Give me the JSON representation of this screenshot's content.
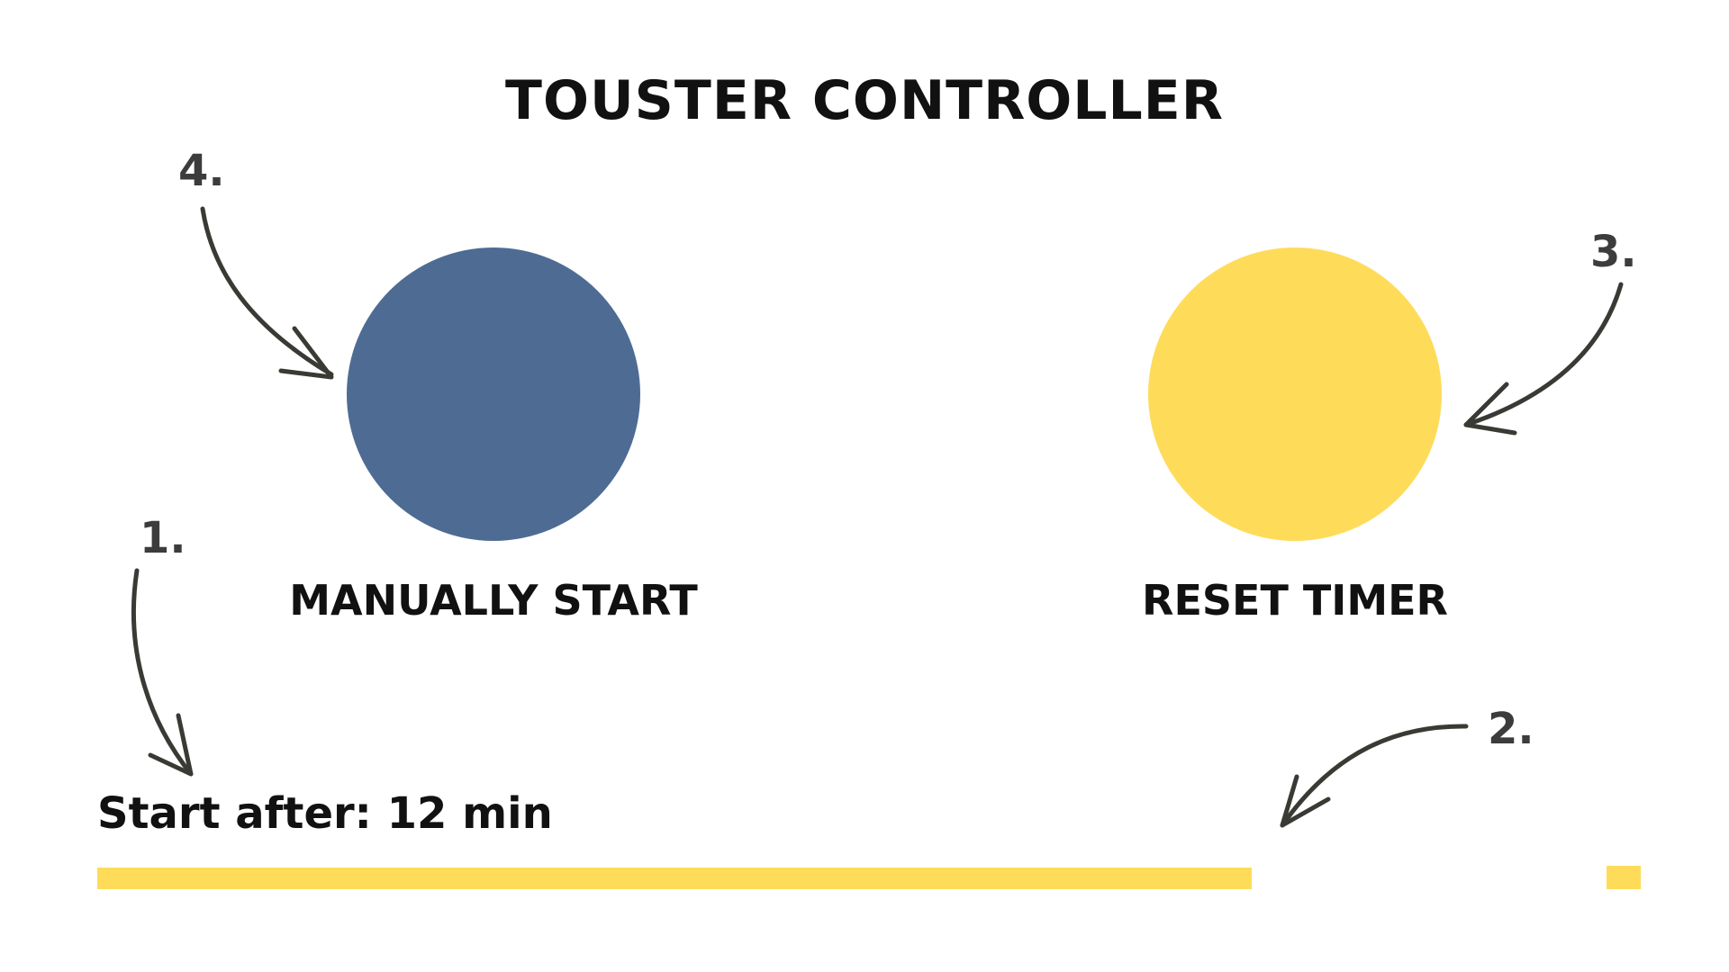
{
  "title": "TOUSTER CONTROLLER",
  "buttons": {
    "manual_start": {
      "label": "MANUALLY START",
      "color": "#4e6b94"
    },
    "reset_timer": {
      "label": "RESET TIMER",
      "color": "#fedc5a"
    }
  },
  "steps": {
    "step_1": "1.",
    "step_2": "2.",
    "step_3": "3.",
    "step_4": "4."
  },
  "timer": {
    "label": "Start after: 12 min",
    "progress": 0.748,
    "color": "#fedc5a"
  },
  "annotation_color": "#3a3a35",
  "arrow_icon": "hand-drawn-arrow"
}
